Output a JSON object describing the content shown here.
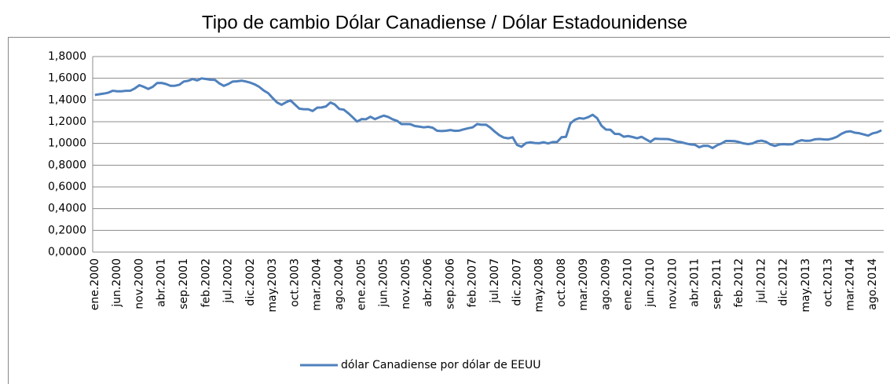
{
  "chart_data": {
    "type": "line",
    "title": "Tipo de cambio Dólar Canadiense / Dólar Estadounidense",
    "categories": [
      "ene.2000",
      null,
      null,
      null,
      null,
      "jun.2000",
      null,
      null,
      null,
      null,
      "nov.2000",
      null,
      null,
      null,
      null,
      "abr.2001",
      null,
      null,
      null,
      null,
      "sep.2001",
      null,
      null,
      null,
      null,
      "feb.2002",
      null,
      null,
      null,
      null,
      "jul.2002",
      null,
      null,
      null,
      null,
      "dic.2002",
      null,
      null,
      null,
      null,
      "may.2003",
      null,
      null,
      null,
      null,
      "oct.2003",
      null,
      null,
      null,
      null,
      "mar.2004",
      null,
      null,
      null,
      null,
      "ago.2004",
      null,
      null,
      null,
      null,
      "ene.2005",
      null,
      null,
      null,
      null,
      "jun.2005",
      null,
      null,
      null,
      null,
      "nov.2005",
      null,
      null,
      null,
      null,
      "abr.2006",
      null,
      null,
      null,
      null,
      "sep.2006",
      null,
      null,
      null,
      null,
      "feb.2007",
      null,
      null,
      null,
      null,
      "jul.2007",
      null,
      null,
      null,
      null,
      "dic.2007",
      null,
      null,
      null,
      null,
      "may.2008",
      null,
      null,
      null,
      null,
      "oct.2008",
      null,
      null,
      null,
      null,
      "mar.2009",
      null,
      null,
      null,
      null,
      "ago.2009",
      null,
      null,
      null,
      null,
      "ene.2010",
      null,
      null,
      null,
      null,
      "jun.2010",
      null,
      null,
      null,
      null,
      "nov.2010",
      null,
      null,
      null,
      null,
      "abr.2011",
      null,
      null,
      null,
      null,
      "sep.2011",
      null,
      null,
      null,
      null,
      "feb.2012",
      null,
      null,
      null,
      null,
      "jul.2012",
      null,
      null,
      null,
      null,
      "dic.2012",
      null,
      null,
      null,
      null,
      "may.2013",
      null,
      null,
      null,
      null,
      "oct.2013",
      null,
      null,
      null,
      null,
      "mar.2014",
      null,
      null,
      null,
      null,
      "ago.2014",
      null,
      null
    ],
    "series": [
      {
        "name": "dólar Canadiense por dólar de EEUU",
        "color": "#4f81bd",
        "values": [
          1.447,
          1.453,
          1.459,
          1.467,
          1.485,
          1.48,
          1.48,
          1.485,
          1.486,
          1.507,
          1.536,
          1.521,
          1.502,
          1.521,
          1.556,
          1.557,
          1.547,
          1.531,
          1.531,
          1.54,
          1.57,
          1.577,
          1.593,
          1.58,
          1.599,
          1.593,
          1.587,
          1.585,
          1.553,
          1.53,
          1.547,
          1.57,
          1.572,
          1.578,
          1.57,
          1.559,
          1.543,
          1.52,
          1.487,
          1.463,
          1.418,
          1.377,
          1.356,
          1.379,
          1.397,
          1.358,
          1.32,
          1.315,
          1.315,
          1.299,
          1.329,
          1.331,
          1.341,
          1.377,
          1.358,
          1.317,
          1.311,
          1.279,
          1.241,
          1.201,
          1.224,
          1.223,
          1.246,
          1.224,
          1.241,
          1.256,
          1.244,
          1.222,
          1.208,
          1.178,
          1.178,
          1.177,
          1.16,
          1.155,
          1.148,
          1.153,
          1.145,
          1.117,
          1.114,
          1.117,
          1.123,
          1.116,
          1.118,
          1.13,
          1.14,
          1.148,
          1.178,
          1.172,
          1.173,
          1.145,
          1.108,
          1.076,
          1.054,
          1.047,
          1.057,
          0.986,
          0.97,
          1.004,
          1.01,
          1.004,
          1.002,
          1.011,
          1.0,
          1.013,
          1.014,
          1.057,
          1.061,
          1.185,
          1.218,
          1.233,
          1.228,
          1.242,
          1.264,
          1.233,
          1.163,
          1.128,
          1.126,
          1.088,
          1.087,
          1.062,
          1.068,
          1.059,
          1.048,
          1.061,
          1.038,
          1.015,
          1.044,
          1.042,
          1.041,
          1.04,
          1.03,
          1.017,
          1.011,
          1.0,
          0.991,
          0.988,
          0.965,
          0.979,
          0.978,
          0.958,
          0.983,
          1.0,
          1.023,
          1.023,
          1.021,
          1.012,
          1.0,
          0.994,
          1.0,
          1.019,
          1.026,
          1.015,
          0.991,
          0.977,
          0.99,
          0.993,
          0.99,
          0.993,
          1.017,
          1.03,
          1.024,
          1.026,
          1.038,
          1.041,
          1.037,
          1.036,
          1.046,
          1.062,
          1.089,
          1.107,
          1.112,
          1.099,
          1.094,
          1.083,
          1.072,
          1.093,
          1.102,
          1.121
        ]
      }
    ],
    "ylim": [
      0,
      1.8
    ],
    "yticks": [
      {
        "value": 0,
        "label": "0,0000"
      },
      {
        "value": 0.2,
        "label": "0,2000"
      },
      {
        "value": 0.4,
        "label": "0,4000"
      },
      {
        "value": 0.6,
        "label": "0,6000"
      },
      {
        "value": 0.8,
        "label": "0,8000"
      },
      {
        "value": 1,
        "label": "1,0000"
      },
      {
        "value": 1.2,
        "label": "1,2000"
      },
      {
        "value": 1.4,
        "label": "1,4000"
      },
      {
        "value": 1.6,
        "label": "1,6000"
      },
      {
        "value": 1.8,
        "label": "1,8000"
      }
    ],
    "grid": true,
    "legend": "bottom"
  }
}
